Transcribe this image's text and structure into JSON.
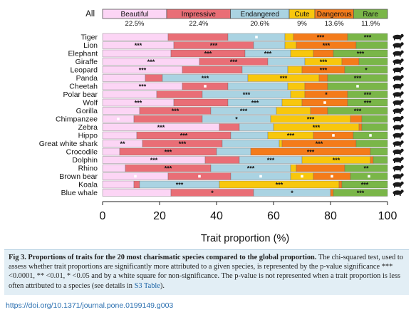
{
  "chart_data": {
    "type": "bar",
    "orientation": "horizontal",
    "stacked": true,
    "xlabel": "Trait proportion (%)",
    "xlim": [
      0,
      100
    ],
    "xticks": [
      0,
      20,
      40,
      60,
      80,
      100
    ],
    "all_label": "All",
    "legend_placement": "top",
    "series_order": [
      "Beautiful",
      "Impressive",
      "Endangered",
      "Cute",
      "Dangerous",
      "Rare"
    ],
    "colors": {
      "Beautiful": "#fcd5f5",
      "Impressive": "#e96e76",
      "Endangered": "#aad3e2",
      "Cute": "#f8c70d",
      "Dangerous": "#f47b1a",
      "Rare": "#7ab648"
    },
    "global": {
      "Beautiful": 22.5,
      "Impressive": 22.4,
      "Endangered": 20.6,
      "Cute": 9,
      "Dangerous": 13.6,
      "Rare": 11.9
    },
    "global_labels": [
      "22.5%",
      "22.4%",
      "20.6%",
      "9%",
      "13.6%",
      "11.9%"
    ],
    "species": [
      {
        "name": "Tiger",
        "values": [
          23,
          21,
          20,
          3,
          19,
          14
        ],
        "sig": [
          "",
          "",
          "sq",
          "",
          "***",
          "***"
        ]
      },
      {
        "name": "Lion",
        "values": [
          25,
          28,
          11,
          4,
          21,
          11
        ],
        "sig": [
          "***",
          "***",
          "",
          "",
          "***",
          ""
        ]
      },
      {
        "name": "Elephant",
        "values": [
          24,
          26,
          16,
          8,
          7,
          19
        ],
        "sig": [
          "",
          "***",
          "***",
          "",
          "",
          "***"
        ]
      },
      {
        "name": "Giraffe",
        "values": [
          34,
          24,
          13,
          13,
          6,
          10
        ],
        "sig": [
          "***",
          "***",
          "",
          "***",
          "",
          ""
        ]
      },
      {
        "name": "Leopard",
        "values": [
          28,
          21,
          16,
          5,
          15,
          15
        ],
        "sig": [
          "***",
          "",
          "",
          "",
          "***",
          "*"
        ]
      },
      {
        "name": "Panda",
        "values": [
          15,
          6,
          30,
          25,
          3,
          21
        ],
        "sig": [
          "",
          "",
          "***",
          "***",
          "",
          "***"
        ]
      },
      {
        "name": "Cheetah",
        "values": [
          28,
          16,
          21,
          6,
          8,
          21
        ],
        "sig": [
          "***",
          "sq",
          "",
          "",
          "",
          "sq"
        ]
      },
      {
        "name": "Polar bear",
        "values": [
          19,
          16,
          31,
          5,
          15,
          14
        ],
        "sig": [
          "",
          "",
          "***",
          "",
          "*",
          "***"
        ]
      },
      {
        "name": "Wolf",
        "values": [
          25,
          19,
          19,
          7,
          16,
          14
        ],
        "sig": [
          "***",
          "",
          "***",
          "",
          "sq",
          "***"
        ]
      },
      {
        "name": "Gorilla",
        "values": [
          13,
          25,
          23,
          12,
          6,
          21
        ],
        "sig": [
          "",
          "***",
          "***",
          "",
          "",
          "***"
        ]
      },
      {
        "name": "Chimpanzee",
        "values": [
          11,
          24,
          24,
          28,
          4,
          9
        ],
        "sig": [
          "sq",
          "",
          "*",
          "***",
          "",
          ""
        ]
      },
      {
        "name": "Zebra",
        "values": [
          41,
          7,
          12,
          30,
          1,
          9
        ],
        "sig": [
          "***",
          "",
          "",
          "***",
          "",
          ""
        ]
      },
      {
        "name": "Hippo",
        "values": [
          12,
          33,
          13,
          16,
          14,
          12
        ],
        "sig": [
          "",
          "***",
          "",
          "***",
          "sq",
          "sq"
        ]
      },
      {
        "name": "Great white shark",
        "values": [
          14,
          28,
          20,
          1,
          26,
          11
        ],
        "sig": [
          "**",
          "***",
          "",
          "",
          "***",
          ""
        ]
      },
      {
        "name": "Crocodile",
        "values": [
          6,
          34,
          12,
          0,
          42,
          6
        ],
        "sig": [
          "",
          "***",
          "",
          "",
          "***",
          ""
        ]
      },
      {
        "name": "Dolphin",
        "values": [
          36,
          12,
          22,
          24,
          1,
          5
        ],
        "sig": [
          "***",
          "",
          "***",
          "***",
          "",
          ""
        ]
      },
      {
        "name": "Rhino",
        "values": [
          8,
          30,
          28,
          2,
          17,
          15
        ],
        "sig": [
          "",
          "***",
          "***",
          "",
          "",
          "**"
        ]
      },
      {
        "name": "Brown bear",
        "values": [
          23,
          22,
          21,
          8,
          13,
          13
        ],
        "sig": [
          "sq",
          "sq",
          "sq",
          "sq",
          "sq",
          "sq"
        ]
      },
      {
        "name": "Koala",
        "values": [
          11,
          2,
          28,
          42,
          1,
          16
        ],
        "sig": [
          "",
          "",
          "***",
          "***",
          "",
          "***"
        ]
      },
      {
        "name": "Blue whale",
        "values": [
          24,
          29,
          27,
          0,
          1,
          19
        ],
        "sig": [
          "",
          "*",
          "*",
          "",
          "",
          "***"
        ]
      }
    ]
  },
  "caption": {
    "title": "Fig 3. Proportions of traits for the 20 most charismatic species compared to the global proportion.",
    "body": "The chi-squared test, used to assess whether trait proportions are significantly more attributed to a given species, is represented by the p-value significance *** <0.0001, ** <0.01, * <0.05 and by a white square for non-significance. The p-value is not represented when a trait proportion is less often attributed to a species (see details in",
    "link": "S3 Table",
    "end": ")."
  },
  "doi": "https://doi.org/10.1371/journal.pone.0199149.g003",
  "silhouette_icon": "animal-silhouette-icon"
}
